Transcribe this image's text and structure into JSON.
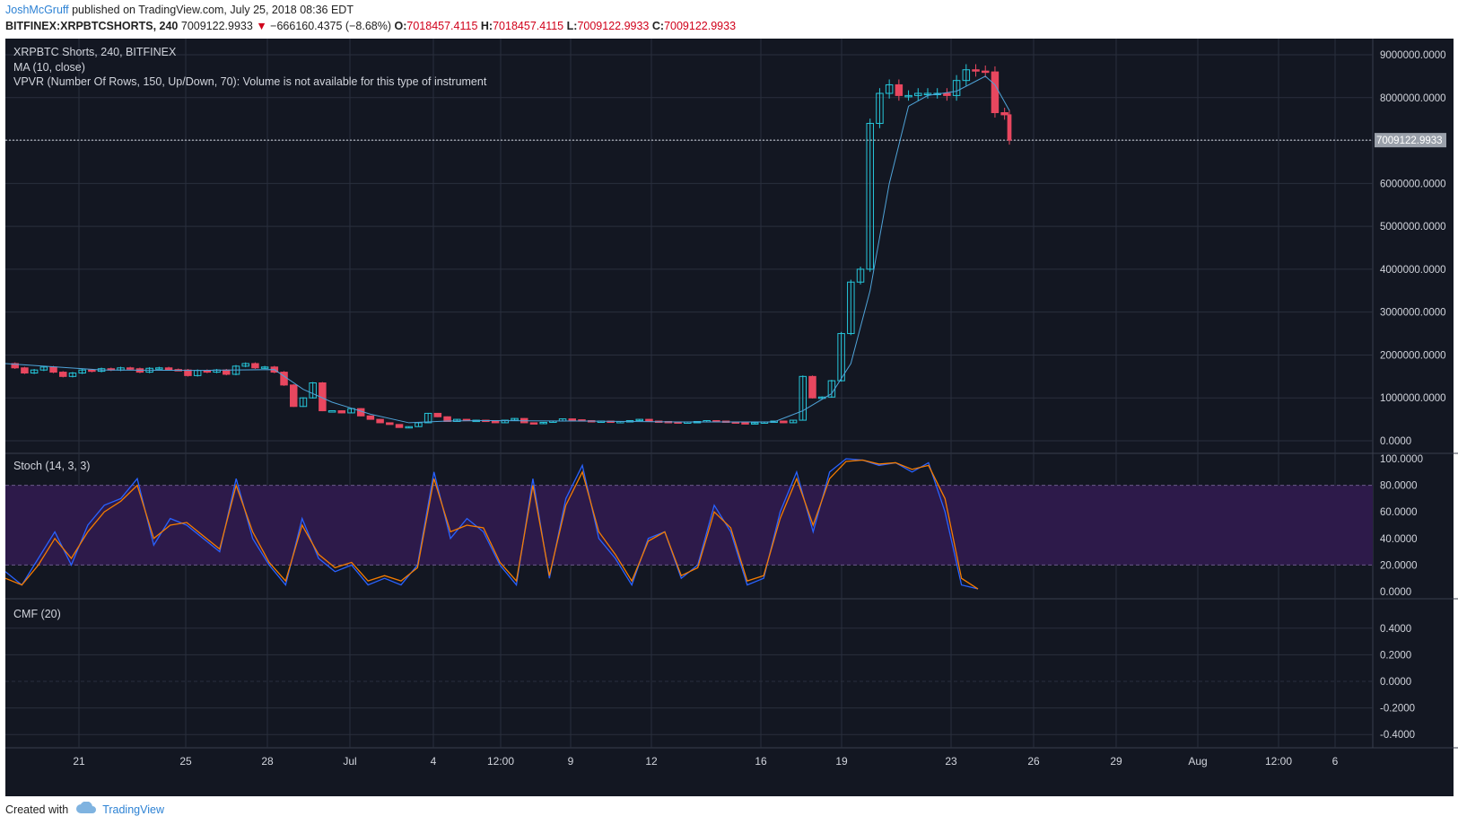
{
  "header": {
    "author": "JoshMcGruff",
    "published": "published on TradingView.com, July 25, 2018 08:36 EDT",
    "symbol": "BITFINEX:XRPBTCSHORTS, 240",
    "last": "7009122.9933",
    "change": "−666160.4375 (−8.68%)",
    "open_label": "O:",
    "open": "7018457.4115",
    "high_label": "H:",
    "high": "7018457.4115",
    "low_label": "L:",
    "low": "7009122.9933",
    "close_label": "C:",
    "close": "7009122.9933"
  },
  "legend": {
    "title": "XRPBTC Shorts, 240, BITFINEX",
    "ma": "MA (10, close)",
    "vpvr": "VPVR (Number Of Rows, 150, Up/Down, 70): Volume is not available for this type of instrument"
  },
  "footer": {
    "created": "Created with",
    "brand": "TradingView"
  },
  "colors": {
    "background": "#131722",
    "grid": "#2a2f3d",
    "up": "#26c6da",
    "down": "#e8475f",
    "ma": "#4fa3d8",
    "stoch_k": "#2962ff",
    "stoch_d": "#f57c00",
    "stoch_band": "#2d1a4a"
  },
  "chart_data": [
    {
      "type": "candlestick",
      "name": "price",
      "ylim": [
        0,
        9000000
      ],
      "y_ticks": [
        "9000000.0000",
        "8000000.0000",
        "7000000.0000",
        "6000000.0000",
        "5000000.0000",
        "4000000.0000",
        "3000000.0000",
        "2000000.0000",
        "1000000.0000",
        "0.0000"
      ],
      "y_tick_values": [
        9000000,
        8000000,
        7000000,
        6000000,
        5000000,
        4000000,
        3000000,
        2000000,
        1000000,
        0
      ],
      "last_price_label": "7009122.9933",
      "last_price": 7009122.9933,
      "x_ticks": [
        "21",
        "25",
        "28",
        "Jul",
        "4",
        "12:00",
        "9",
        "12",
        "16",
        "19",
        "23",
        "26",
        "29",
        "Aug",
        "12:00",
        "6"
      ],
      "close_series": [
        [
          0,
          1800000
        ],
        [
          2,
          1700000
        ],
        [
          4,
          1580000
        ],
        [
          6,
          1650000
        ],
        [
          8,
          1720000
        ],
        [
          10,
          1600000
        ],
        [
          12,
          1500000
        ],
        [
          14,
          1580000
        ],
        [
          16,
          1650000
        ],
        [
          18,
          1620000
        ],
        [
          20,
          1680000
        ],
        [
          22,
          1650000
        ],
        [
          24,
          1700000
        ],
        [
          26,
          1680000
        ],
        [
          28,
          1600000
        ],
        [
          30,
          1690000
        ],
        [
          32,
          1700000
        ],
        [
          34,
          1660000
        ],
        [
          36,
          1650000
        ],
        [
          38,
          1520000
        ],
        [
          40,
          1640000
        ],
        [
          42,
          1600000
        ],
        [
          44,
          1650000
        ],
        [
          46,
          1550000
        ],
        [
          48,
          1740000
        ],
        [
          50,
          1800000
        ],
        [
          52,
          1700000
        ],
        [
          54,
          1720000
        ],
        [
          56,
          1600000
        ],
        [
          58,
          1300000
        ],
        [
          60,
          800000
        ],
        [
          62,
          1000000
        ],
        [
          64,
          1350000
        ],
        [
          66,
          700000
        ],
        [
          68,
          700000
        ],
        [
          70,
          650000
        ],
        [
          72,
          750000
        ],
        [
          74,
          580000
        ],
        [
          76,
          500000
        ],
        [
          78,
          420000
        ],
        [
          80,
          380000
        ],
        [
          82,
          310000
        ],
        [
          84,
          330000
        ],
        [
          86,
          420000
        ],
        [
          88,
          640000
        ],
        [
          90,
          560000
        ],
        [
          92,
          450000
        ],
        [
          94,
          500000
        ],
        [
          96,
          470000
        ],
        [
          98,
          480000
        ],
        [
          100,
          470000
        ],
        [
          102,
          420000
        ],
        [
          104,
          480000
        ],
        [
          106,
          520000
        ],
        [
          108,
          420000
        ],
        [
          110,
          400000
        ],
        [
          112,
          430000
        ],
        [
          114,
          460000
        ],
        [
          116,
          510000
        ],
        [
          118,
          490000
        ],
        [
          120,
          470000
        ],
        [
          122,
          450000
        ],
        [
          124,
          460000
        ],
        [
          126,
          440000
        ],
        [
          128,
          450000
        ],
        [
          130,
          470000
        ],
        [
          132,
          500000
        ],
        [
          134,
          460000
        ],
        [
          136,
          450000
        ],
        [
          138,
          440000
        ],
        [
          140,
          430000
        ],
        [
          142,
          440000
        ],
        [
          144,
          450000
        ],
        [
          146,
          470000
        ],
        [
          148,
          460000
        ],
        [
          150,
          440000
        ],
        [
          152,
          420000
        ],
        [
          154,
          400000
        ],
        [
          156,
          420000
        ],
        [
          158,
          440000
        ],
        [
          160,
          460000
        ],
        [
          162,
          420000
        ],
        [
          164,
          480000
        ],
        [
          166,
          1500000
        ],
        [
          168,
          1000000
        ],
        [
          170,
          1020000
        ],
        [
          172,
          1400000
        ],
        [
          174,
          2500000
        ],
        [
          176,
          3700000
        ],
        [
          178,
          4000000
        ],
        [
          180,
          7400000
        ],
        [
          182,
          8100000
        ],
        [
          184,
          8300000
        ],
        [
          186,
          8050000
        ],
        [
          188,
          8050000
        ],
        [
          190,
          8100000
        ],
        [
          192,
          8100000
        ],
        [
          194,
          8100000
        ],
        [
          196,
          8050000
        ],
        [
          198,
          8400000
        ],
        [
          200,
          8650000
        ],
        [
          202,
          8620000
        ],
        [
          204,
          8600000
        ],
        [
          206,
          7650000
        ],
        [
          208,
          7600000
        ],
        [
          209,
          7009122.9933
        ]
      ],
      "ma_series": [
        [
          0,
          1800000
        ],
        [
          20,
          1650000
        ],
        [
          40,
          1640000
        ],
        [
          56,
          1660000
        ],
        [
          62,
          1200000
        ],
        [
          68,
          900000
        ],
        [
          76,
          620000
        ],
        [
          84,
          420000
        ],
        [
          92,
          460000
        ],
        [
          100,
          470000
        ],
        [
          120,
          460000
        ],
        [
          140,
          440000
        ],
        [
          160,
          440000
        ],
        [
          166,
          700000
        ],
        [
          172,
          1100000
        ],
        [
          176,
          1800000
        ],
        [
          180,
          3500000
        ],
        [
          184,
          6000000
        ],
        [
          188,
          7800000
        ],
        [
          192,
          8050000
        ],
        [
          198,
          8150000
        ],
        [
          204,
          8500000
        ],
        [
          206,
          8300000
        ],
        [
          209,
          7700000
        ]
      ]
    },
    {
      "type": "line",
      "name": "Stoch (14, 3, 3)",
      "label": "Stoch (14, 3, 3)",
      "ylim": [
        0,
        100
      ],
      "y_ticks": [
        "100.0000",
        "80.0000",
        "60.0000",
        "40.0000",
        "20.0000",
        "0.0000"
      ],
      "y_tick_values": [
        100,
        80,
        60,
        40,
        20,
        0
      ],
      "band": [
        20,
        80
      ],
      "series": [
        {
          "key": "k",
          "values": [
            [
              0,
              15
            ],
            [
              4,
              5
            ],
            [
              8,
              25
            ],
            [
              12,
              45
            ],
            [
              16,
              20
            ],
            [
              20,
              50
            ],
            [
              24,
              65
            ],
            [
              28,
              70
            ],
            [
              32,
              85
            ],
            [
              36,
              35
            ],
            [
              40,
              55
            ],
            [
              44,
              50
            ],
            [
              48,
              40
            ],
            [
              52,
              30
            ],
            [
              56,
              85
            ],
            [
              60,
              40
            ],
            [
              64,
              20
            ],
            [
              68,
              5
            ],
            [
              72,
              55
            ],
            [
              76,
              25
            ],
            [
              80,
              15
            ],
            [
              84,
              20
            ],
            [
              88,
              5
            ],
            [
              92,
              10
            ],
            [
              96,
              5
            ],
            [
              100,
              20
            ],
            [
              104,
              90
            ],
            [
              108,
              40
            ],
            [
              112,
              55
            ],
            [
              116,
              45
            ],
            [
              120,
              20
            ],
            [
              124,
              5
            ],
            [
              128,
              85
            ],
            [
              132,
              10
            ],
            [
              136,
              70
            ],
            [
              140,
              95
            ],
            [
              144,
              40
            ],
            [
              148,
              25
            ],
            [
              152,
              5
            ],
            [
              156,
              40
            ],
            [
              160,
              45
            ],
            [
              164,
              10
            ],
            [
              168,
              20
            ],
            [
              172,
              65
            ],
            [
              176,
              45
            ],
            [
              180,
              5
            ],
            [
              184,
              10
            ],
            [
              188,
              60
            ],
            [
              192,
              90
            ],
            [
              196,
              45
            ],
            [
              200,
              90
            ],
            [
              204,
              100
            ],
            [
              208,
              99
            ],
            [
              212,
              95
            ],
            [
              216,
              97
            ],
            [
              220,
              90
            ],
            [
              224,
              97
            ],
            [
              228,
              60
            ],
            [
              232,
              5
            ],
            [
              236,
              2
            ]
          ]
        },
        {
          "key": "d",
          "values": [
            [
              0,
              10
            ],
            [
              4,
              5
            ],
            [
              8,
              20
            ],
            [
              12,
              40
            ],
            [
              16,
              25
            ],
            [
              20,
              45
            ],
            [
              24,
              60
            ],
            [
              28,
              68
            ],
            [
              32,
              80
            ],
            [
              36,
              40
            ],
            [
              40,
              50
            ],
            [
              44,
              52
            ],
            [
              48,
              42
            ],
            [
              52,
              32
            ],
            [
              56,
              80
            ],
            [
              60,
              45
            ],
            [
              64,
              22
            ],
            [
              68,
              8
            ],
            [
              72,
              50
            ],
            [
              76,
              28
            ],
            [
              80,
              18
            ],
            [
              84,
              22
            ],
            [
              88,
              8
            ],
            [
              92,
              12
            ],
            [
              96,
              8
            ],
            [
              100,
              18
            ],
            [
              104,
              85
            ],
            [
              108,
              45
            ],
            [
              112,
              50
            ],
            [
              116,
              48
            ],
            [
              120,
              22
            ],
            [
              124,
              8
            ],
            [
              128,
              80
            ],
            [
              132,
              12
            ],
            [
              136,
              65
            ],
            [
              140,
              90
            ],
            [
              144,
              45
            ],
            [
              148,
              28
            ],
            [
              152,
              8
            ],
            [
              156,
              38
            ],
            [
              160,
              45
            ],
            [
              164,
              12
            ],
            [
              168,
              18
            ],
            [
              172,
              60
            ],
            [
              176,
              48
            ],
            [
              180,
              8
            ],
            [
              184,
              12
            ],
            [
              188,
              55
            ],
            [
              192,
              85
            ],
            [
              196,
              50
            ],
            [
              200,
              85
            ],
            [
              204,
              98
            ],
            [
              208,
              99
            ],
            [
              212,
              96
            ],
            [
              216,
              97
            ],
            [
              220,
              92
            ],
            [
              224,
              95
            ],
            [
              228,
              70
            ],
            [
              232,
              10
            ],
            [
              236,
              2
            ]
          ]
        }
      ]
    },
    {
      "type": "line",
      "name": "CMF (20)",
      "label": "CMF (20)",
      "ylim": [
        -0.5,
        0.5
      ],
      "y_ticks": [
        "0.4000",
        "0.2000",
        "0.0000",
        "-0.2000",
        "-0.4000"
      ],
      "y_tick_values": [
        0.4,
        0.2,
        0,
        -0.2,
        -0.4
      ],
      "values": []
    }
  ]
}
